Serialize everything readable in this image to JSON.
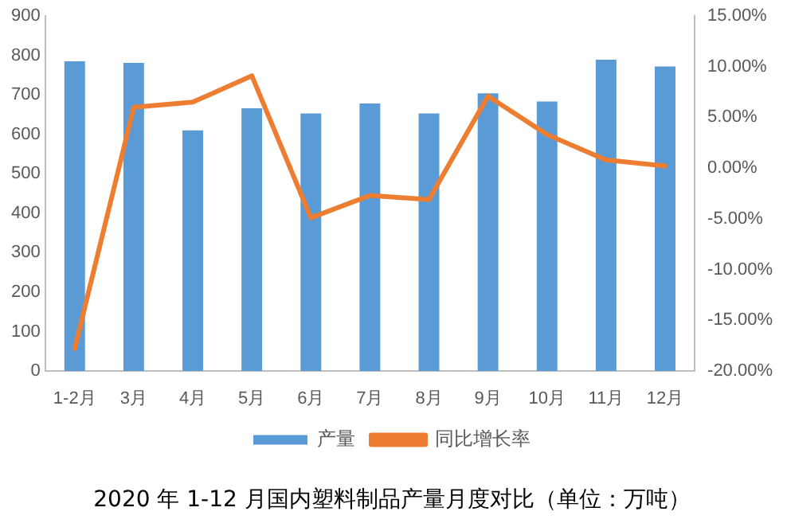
{
  "chart_data": {
    "type": "bar",
    "title": "2020 年 1-12 月国内塑料制品产量月度对比（单位：万吨）",
    "categories": [
      "1-2月",
      "3月",
      "4月",
      "5月",
      "6月",
      "7月",
      "8月",
      "9月",
      "10月",
      "11月",
      "12月"
    ],
    "series": [
      {
        "name": "产量",
        "color": "#5b9bd5",
        "values": [
          785,
          781,
          610,
          666,
          653,
          678,
          653,
          704,
          683,
          789,
          772
        ]
      },
      {
        "name": "同比增长率",
        "type": "line",
        "axis": "y2",
        "color": "#ed7d31",
        "marker": "none",
        "values": [
          -17.8,
          6.0,
          6.5,
          9.1,
          -4.9,
          -2.7,
          -3.1,
          7.1,
          3.3,
          0.8,
          0.2
        ]
      }
    ],
    "ylim": [
      0,
      900
    ],
    "yticks": [
      0,
      100,
      200,
      300,
      400,
      500,
      600,
      700,
      800,
      900
    ],
    "y2lim": [
      -20,
      15
    ],
    "y2ticks": [
      {
        "value": -20,
        "label": "-20.00%"
      },
      {
        "value": -15,
        "label": "-15.00%"
      },
      {
        "value": -10,
        "label": "-10.00%"
      },
      {
        "value": -5,
        "label": "-5.00%"
      },
      {
        "value": 0,
        "label": "0.00%"
      },
      {
        "value": 5,
        "label": "5.00%"
      },
      {
        "value": 10,
        "label": "10.00%"
      },
      {
        "value": 15,
        "label": "15.00%"
      }
    ],
    "grid": false,
    "legend": "bottom"
  }
}
